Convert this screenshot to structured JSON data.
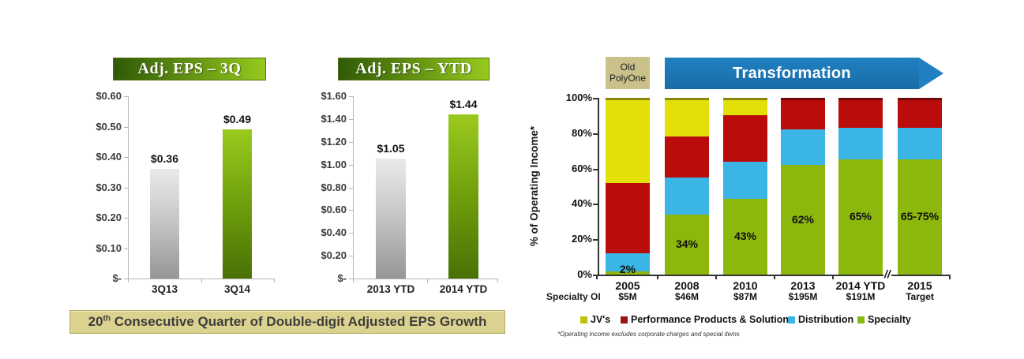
{
  "bottom_banner": {
    "prefix": "20",
    "sup": "th",
    "rest": " Consecutive Quarter of Double-digit Adjusted EPS Growth"
  },
  "colors": {
    "banner_gradient_start": "#2f5a06",
    "banner_gradient_end": "#96c91e",
    "bottom_banner_bg": "#dcd28f",
    "bottom_banner_text": "#3d3d3d",
    "old_polyone_bg": "#c9c08a",
    "arrow_blue": "#2080c2",
    "bar_silver_top": "#eaeaea",
    "bar_silver_mid": "#c4c4c4",
    "bar_silver_bottom": "#969696",
    "bar_green_top": "#9aca1d",
    "bar_green_mid": "#6f9f0c",
    "bar_green_bottom": "#4a7005",
    "eps_axis": "#b3b3b3",
    "stacked_axis": "#333333",
    "tick_text": "#3a3a3a"
  },
  "chart_data": [
    {
      "type": "bar",
      "title": "Adj. EPS – 3Q",
      "categories": [
        "3Q13",
        "3Q14"
      ],
      "values": [
        0.36,
        0.49
      ],
      "bar_labels": [
        "$0.36",
        "$0.49"
      ],
      "yticks": [
        "$0.60",
        "$0.50",
        "$0.40",
        "$0.30",
        "$0.20",
        "$0.10",
        "$-"
      ],
      "ylim": [
        0,
        0.6
      ],
      "bar_styles": [
        "silver",
        "green"
      ]
    },
    {
      "type": "bar",
      "title": "Adj. EPS – YTD",
      "categories": [
        "2013 YTD",
        "2014 YTD"
      ],
      "values": [
        1.05,
        1.44
      ],
      "bar_labels": [
        "$1.05",
        "$1.44"
      ],
      "yticks": [
        "$1.60",
        "$1.40",
        "$1.20",
        "$1.00",
        "$0.80",
        "$0.60",
        "$0.40",
        "$0.20",
        "$-"
      ],
      "ylim": [
        0,
        1.6
      ],
      "bar_styles": [
        "silver",
        "green"
      ]
    },
    {
      "type": "stacked-bar",
      "ylabel": "% of Operating Income*",
      "yticks": [
        "100%",
        "80%",
        "60%",
        "40%",
        "20%",
        "0%"
      ],
      "ylim": [
        0,
        100
      ],
      "categories": [
        "2005",
        "2008",
        "2010",
        "2013",
        "2014 YTD",
        "2015"
      ],
      "series": [
        {
          "name": "Specialty",
          "color": "#8cb80e",
          "values": [
            2,
            34,
            43,
            62,
            65,
            65
          ]
        },
        {
          "name": "Distribution",
          "color": "#3ab5e6",
          "values": [
            10,
            21,
            21,
            20,
            18,
            18
          ]
        },
        {
          "name": "Performance Products & Solutions",
          "color": "#bb0c0c",
          "values": [
            40,
            23,
            26,
            18,
            17,
            17
          ]
        },
        {
          "name": "JV's",
          "color": "#e3e008",
          "values": [
            48,
            22,
            10,
            0,
            0,
            0
          ]
        }
      ],
      "bar_labels": [
        "2%",
        "34%",
        "43%",
        "62%",
        "65%",
        "65-75%"
      ],
      "specialty_oi_label": "Specialty OI",
      "specialty_oi": [
        "$5M",
        "$46M",
        "$87M",
        "$195M",
        "$191M",
        "Target"
      ],
      "legend": [
        {
          "label": "JV's",
          "color": "#b9c40b"
        },
        {
          "label": "Performance Products & Solutions",
          "color": "#9c1414"
        },
        {
          "label": "Distribution",
          "color": "#3ab5e6"
        },
        {
          "label": "Specialty",
          "color": "#8cb80e"
        }
      ],
      "annotations": {
        "old_label": "Old\nPolyOne",
        "arrow_label": "Transformation"
      },
      "axis_break": "//",
      "footnote": "*Operating income excludes corporate charges and special items"
    }
  ]
}
